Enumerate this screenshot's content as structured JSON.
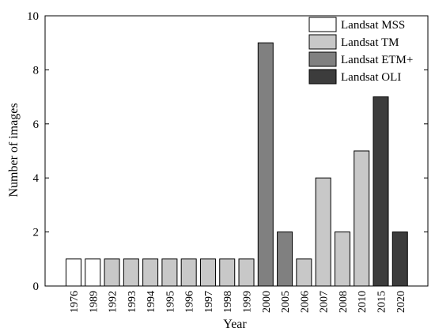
{
  "chart_data": {
    "type": "bar",
    "xlabel": "Year",
    "ylabel": "Number of images",
    "ylim": [
      0,
      10
    ],
    "yticks": [
      0,
      2,
      4,
      6,
      8,
      10
    ],
    "grid": false,
    "legend_position": "top-right",
    "categories": [
      "1976",
      "1989",
      "1992",
      "1993",
      "1994",
      "1995",
      "1996",
      "1997",
      "1998",
      "1999",
      "2000",
      "2005",
      "2006",
      "2007",
      "2008",
      "2010",
      "2015",
      "2020"
    ],
    "values": [
      1,
      1,
      1,
      1,
      1,
      1,
      1,
      1,
      1,
      1,
      9,
      2,
      1,
      4,
      2,
      5,
      7,
      2
    ],
    "bar_series": [
      "Landsat MSS",
      "Landsat MSS",
      "Landsat TM",
      "Landsat TM",
      "Landsat TM",
      "Landsat TM",
      "Landsat TM",
      "Landsat TM",
      "Landsat TM",
      "Landsat TM",
      "Landsat ETM+",
      "Landsat ETM+",
      "Landsat TM",
      "Landsat TM",
      "Landsat TM",
      "Landsat TM",
      "Landsat OLI",
      "Landsat OLI"
    ],
    "series": [
      {
        "name": "Landsat MSS",
        "color": "#ffffff"
      },
      {
        "name": "Landsat TM",
        "color": "#c8c8c8"
      },
      {
        "name": "Landsat ETM+",
        "color": "#808080"
      },
      {
        "name": "Landsat OLI",
        "color": "#3c3c3c"
      }
    ]
  }
}
